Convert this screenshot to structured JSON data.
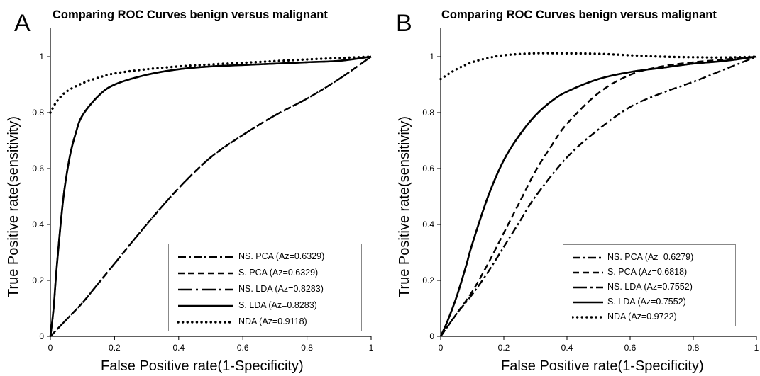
{
  "chart_data": [
    {
      "panel": "A",
      "type": "line",
      "title": "Comparing ROC Curves benign versus malignant",
      "xlabel": "False Positive rate(1-Specificity)",
      "ylabel": "True Positive rate(sensitivity)",
      "xlim": [
        0,
        1
      ],
      "ylim": [
        0,
        1
      ],
      "xticks": [
        "0",
        "0.2",
        "0.4",
        "0.6",
        "0.8",
        "1"
      ],
      "yticks": [
        "0",
        "0.2",
        "0.4",
        "0.6",
        "0.8",
        "1"
      ],
      "grid": false,
      "legend_position": "bottom-right",
      "series": [
        {
          "name": "NS. PCA (Az=0.6329)",
          "style": "dash-dot",
          "x": [
            0,
            0.05,
            0.1,
            0.15,
            0.2,
            0.3,
            0.4,
            0.5,
            0.6,
            0.7,
            0.8,
            0.9,
            1
          ],
          "y": [
            0,
            0.06,
            0.12,
            0.19,
            0.26,
            0.4,
            0.53,
            0.64,
            0.72,
            0.79,
            0.85,
            0.92,
            1
          ]
        },
        {
          "name": "S. PCA (Az=0.6329)",
          "style": "dashed",
          "x": [
            0,
            0.05,
            0.1,
            0.15,
            0.2,
            0.3,
            0.4,
            0.5,
            0.6,
            0.7,
            0.8,
            0.9,
            1
          ],
          "y": [
            0,
            0.06,
            0.12,
            0.19,
            0.26,
            0.4,
            0.53,
            0.64,
            0.72,
            0.79,
            0.85,
            0.92,
            1
          ]
        },
        {
          "name": "NS. LDA (Az=0.8283)",
          "style": "long-dash-dot",
          "x": [
            0,
            0.01,
            0.02,
            0.04,
            0.06,
            0.08,
            0.1,
            0.15,
            0.2,
            0.3,
            0.4,
            0.5,
            0.6,
            0.7,
            0.8,
            0.9,
            1
          ],
          "y": [
            0,
            0.1,
            0.25,
            0.49,
            0.64,
            0.73,
            0.79,
            0.86,
            0.9,
            0.935,
            0.955,
            0.965,
            0.97,
            0.975,
            0.98,
            0.985,
            1
          ]
        },
        {
          "name": "S. LDA (Az=0.8283)",
          "style": "solid",
          "x": [
            0,
            0.01,
            0.02,
            0.04,
            0.06,
            0.08,
            0.1,
            0.15,
            0.2,
            0.3,
            0.4,
            0.5,
            0.6,
            0.7,
            0.8,
            0.9,
            1
          ],
          "y": [
            0,
            0.1,
            0.25,
            0.49,
            0.64,
            0.73,
            0.79,
            0.86,
            0.9,
            0.935,
            0.955,
            0.965,
            0.97,
            0.975,
            0.98,
            0.985,
            1
          ]
        },
        {
          "name": "NDA (Az=0.9118)",
          "style": "dotted",
          "x": [
            0,
            0.02,
            0.05,
            0.1,
            0.15,
            0.2,
            0.3,
            0.4,
            0.5,
            0.6,
            0.7,
            0.8,
            0.9,
            1
          ],
          "y": [
            0.8,
            0.84,
            0.875,
            0.905,
            0.925,
            0.94,
            0.955,
            0.965,
            0.972,
            0.978,
            0.984,
            0.99,
            0.995,
            1
          ]
        }
      ]
    },
    {
      "panel": "B",
      "type": "line",
      "title": "Comparing ROC Curves benign versus malignant",
      "xlabel": "False Positive rate(1-Specificity)",
      "ylabel": "True Positive rate(sensitivity)",
      "xlim": [
        0,
        1
      ],
      "ylim": [
        0,
        1
      ],
      "xticks": [
        "0",
        "0.2",
        "0.4",
        "0.6",
        "0.8",
        "1"
      ],
      "yticks": [
        "0",
        "0.2",
        "0.4",
        "0.6",
        "0.8",
        "1"
      ],
      "grid": false,
      "legend_position": "bottom-right",
      "series": [
        {
          "name": "NS. PCA  (Az=0.6279)",
          "style": "dash-dot",
          "x": [
            0,
            0.05,
            0.1,
            0.15,
            0.2,
            0.25,
            0.3,
            0.4,
            0.5,
            0.6,
            0.7,
            0.8,
            0.9,
            1
          ],
          "y": [
            0,
            0.08,
            0.15,
            0.23,
            0.32,
            0.41,
            0.5,
            0.64,
            0.74,
            0.82,
            0.87,
            0.91,
            0.955,
            1
          ]
        },
        {
          "name": "S. PCA (Az=0.6818)",
          "style": "dashed",
          "x": [
            0,
            0.05,
            0.1,
            0.15,
            0.2,
            0.25,
            0.3,
            0.35,
            0.4,
            0.5,
            0.6,
            0.7,
            0.8,
            0.9,
            1
          ],
          "y": [
            0,
            0.08,
            0.16,
            0.26,
            0.37,
            0.48,
            0.59,
            0.68,
            0.76,
            0.87,
            0.935,
            0.965,
            0.98,
            0.99,
            1
          ]
        },
        {
          "name": "NS. LDA (Az=0.7552)",
          "style": "long-dash-dot",
          "x": [
            0,
            0.02,
            0.05,
            0.08,
            0.1,
            0.15,
            0.2,
            0.25,
            0.3,
            0.35,
            0.4,
            0.5,
            0.6,
            0.7,
            0.8,
            0.9,
            1
          ],
          "y": [
            0,
            0.05,
            0.14,
            0.25,
            0.33,
            0.5,
            0.63,
            0.72,
            0.79,
            0.84,
            0.875,
            0.92,
            0.945,
            0.96,
            0.975,
            0.985,
            1
          ]
        },
        {
          "name": "S. LDA (Az=0.7552)",
          "style": "solid",
          "x": [
            0,
            0.02,
            0.05,
            0.08,
            0.1,
            0.15,
            0.2,
            0.25,
            0.3,
            0.35,
            0.4,
            0.5,
            0.6,
            0.7,
            0.8,
            0.9,
            1
          ],
          "y": [
            0,
            0.05,
            0.14,
            0.25,
            0.33,
            0.5,
            0.63,
            0.72,
            0.79,
            0.84,
            0.875,
            0.92,
            0.945,
            0.96,
            0.975,
            0.985,
            1
          ]
        },
        {
          "name": "NDA (Az=0.9722)",
          "style": "dotted",
          "x": [
            0,
            0.05,
            0.1,
            0.15,
            0.2,
            0.3,
            0.4,
            0.5,
            0.6,
            0.7,
            0.8,
            0.9,
            1
          ],
          "y": [
            0.92,
            0.955,
            0.98,
            0.995,
            1.005,
            1.012,
            1.012,
            1.01,
            1.005,
            1.0,
            0.998,
            0.997,
            1.0
          ]
        }
      ]
    }
  ]
}
